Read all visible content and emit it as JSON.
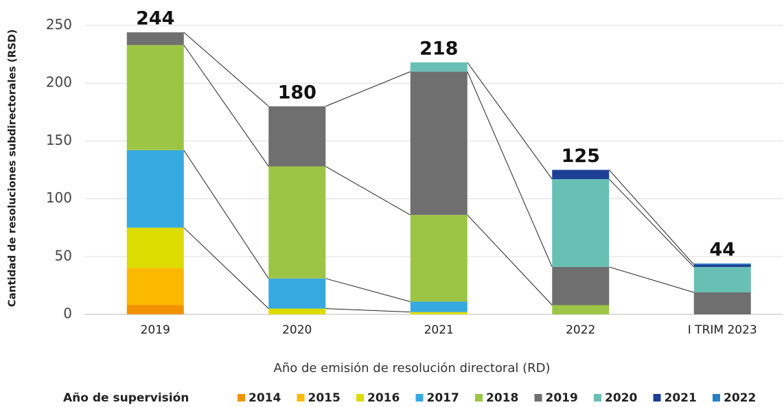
{
  "chart_data": {
    "type": "stacked_bar",
    "y_label": "Cantidad de resoluciones subdirectorales (RSD)",
    "x_label": "Año de emisión de resolución directoral (RD)",
    "legend_title": "Año de supervisión",
    "categories": [
      "2019",
      "2020",
      "2021",
      "2022",
      "I TRIM 2023"
    ],
    "series": [
      {
        "name": "2014",
        "color": "#f39200",
        "values": [
          8,
          0,
          0,
          0,
          0
        ]
      },
      {
        "name": "2015",
        "color": "#fbb900",
        "values": [
          32,
          0,
          0,
          0,
          0
        ]
      },
      {
        "name": "2016",
        "color": "#dcdc00",
        "values": [
          35,
          5,
          2,
          0,
          0
        ]
      },
      {
        "name": "2017",
        "color": "#36a9e1",
        "values": [
          67,
          26,
          9,
          0,
          0
        ]
      },
      {
        "name": "2018",
        "color": "#9dc545",
        "values": [
          91,
          97,
          75,
          8,
          0
        ]
      },
      {
        "name": "2019",
        "color": "#706f6f",
        "values": [
          11,
          52,
          124,
          33,
          19
        ]
      },
      {
        "name": "2020",
        "color": "#68c0b5",
        "values": [
          0,
          0,
          8,
          76,
          22
        ]
      },
      {
        "name": "2021",
        "color": "#1d3f94",
        "values": [
          0,
          0,
          0,
          8,
          2
        ]
      },
      {
        "name": "2022",
        "color": "#2a7fc1",
        "values": [
          0,
          0,
          0,
          0,
          1
        ]
      }
    ],
    "totals": [
      244,
      180,
      218,
      125,
      44
    ],
    "ylim": [
      0,
      250
    ],
    "yticks": [
      0,
      50,
      100,
      150,
      200,
      250
    ],
    "grid": true
  }
}
